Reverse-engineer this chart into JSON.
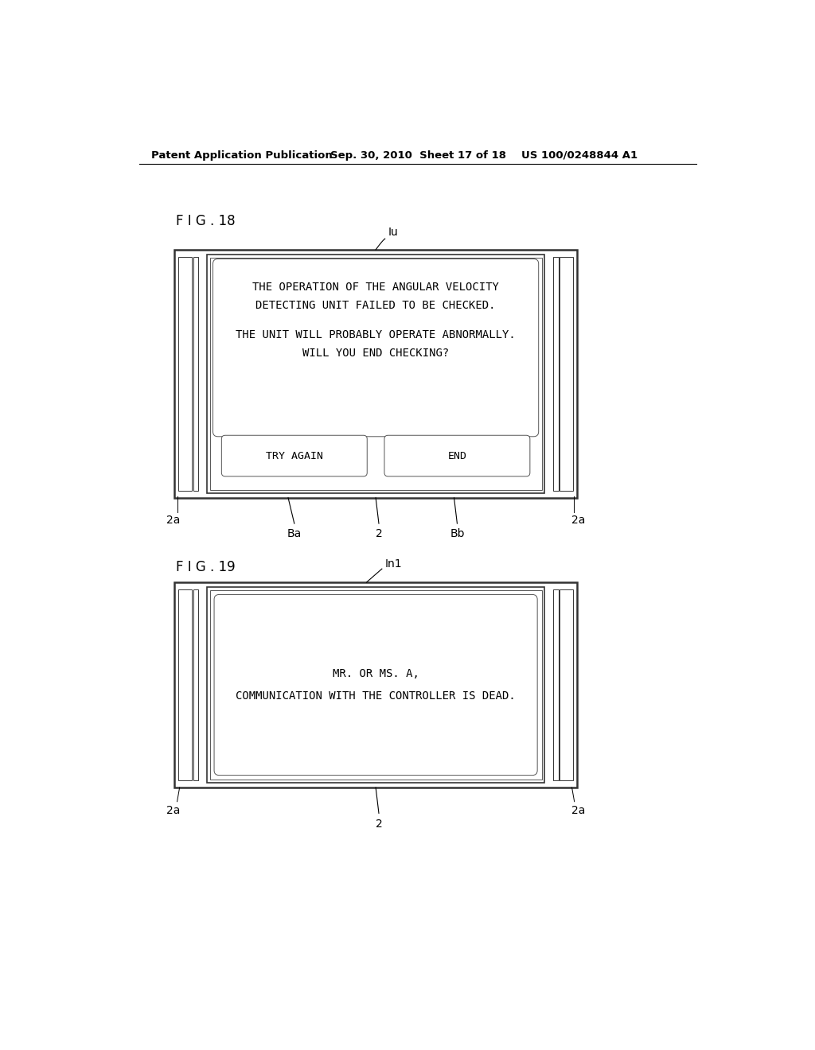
{
  "bg_color": "#ffffff",
  "header_text": "Patent Application Publication",
  "header_date": "Sep. 30, 2010  Sheet 17 of 18",
  "header_patent": "US 100/0248844 A1",
  "fig18_label": "F I G . 18",
  "fig19_label": "F I G . 19",
  "fig18_lu_label": "Iu",
  "fig19_in1_label": "In1",
  "fig18_msg1": "THE OPERATION OF THE ANGULAR VELOCITY",
  "fig18_msg2": "DETECTING UNIT FAILED TO BE CHECKED.",
  "fig18_msg3": "THE UNIT WILL PROBABLY OPERATE ABNORMALLY.",
  "fig18_msg4": "WILL YOU END CHECKING?",
  "fig18_btn1": "TRY AGAIN",
  "fig18_btn2": "END",
  "fig19_msg1": "MR. OR MS. A,",
  "fig19_msg2": "COMMUNICATION WITH THE CONTROLLER IS DEAD.",
  "label_2a_left": "2a",
  "label_2a_right": "2a",
  "label_2": "2",
  "label_Ba": "Ba",
  "label_Bb": "Bb",
  "font_family": "monospace"
}
